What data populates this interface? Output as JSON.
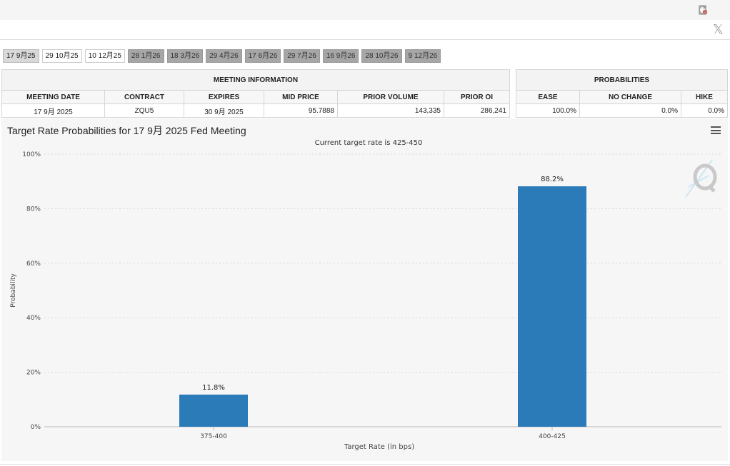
{
  "tabs": [
    {
      "label": "17 9月25",
      "state": "active"
    },
    {
      "label": "29 10月25",
      "state": "open"
    },
    {
      "label": "10 12月25",
      "state": "open"
    },
    {
      "label": "28 1月26",
      "state": "later"
    },
    {
      "label": "18 3月26",
      "state": "later"
    },
    {
      "label": "29 4月26",
      "state": "later"
    },
    {
      "label": "17 6月26",
      "state": "later"
    },
    {
      "label": "29 7月26",
      "state": "later"
    },
    {
      "label": "16 9月26",
      "state": "later"
    },
    {
      "label": "28 10月26",
      "state": "later"
    },
    {
      "label": "9 12月26",
      "state": "later"
    }
  ],
  "meeting_info": {
    "title": "MEETING INFORMATION",
    "headers": [
      "MEETING DATE",
      "CONTRACT",
      "EXPIRES",
      "MID PRICE",
      "PRIOR VOLUME",
      "PRIOR OI"
    ],
    "row": [
      "17 9月 2025",
      "ZQU5",
      "30 9月 2025",
      "95.7888",
      "143,335",
      "286,241"
    ]
  },
  "probabilities": {
    "title": "PROBABILITIES",
    "headers": [
      "EASE",
      "NO CHANGE",
      "HIKE"
    ],
    "row": [
      "100.0%",
      "0.0%",
      "0.0%"
    ]
  },
  "chart": {
    "title": "Target Rate Probabilities for 17 9月 2025 Fed Meeting"
  },
  "chart_data": {
    "type": "bar",
    "title": "Target Rate Probabilities for 17 9月 2025 Fed Meeting",
    "subtitle": "Current target rate is 425-450",
    "xlabel": "Target Rate (in bps)",
    "ylabel": "Probability",
    "categories": [
      "375-400",
      "400-425"
    ],
    "values": [
      11.8,
      88.2
    ],
    "data_labels": [
      "11.8%",
      "88.2%"
    ],
    "yticks": [
      "0%",
      "20%",
      "40%",
      "60%",
      "80%",
      "100%"
    ],
    "ylim": [
      0,
      100
    ],
    "grid": true,
    "bar_color": "#2b7bb9"
  }
}
